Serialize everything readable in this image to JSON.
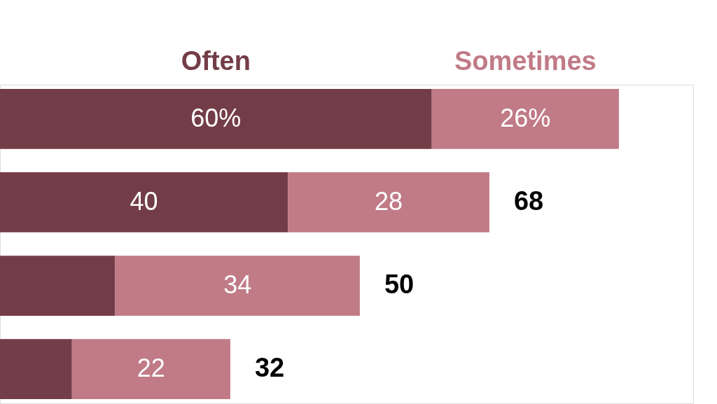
{
  "chart_data": {
    "type": "bar",
    "orientation": "horizontal",
    "stacked": true,
    "legend": "top",
    "categories": [
      null,
      null,
      null,
      null
    ],
    "series": [
      {
        "name": "Often",
        "color": "#733d47",
        "values": [
          60,
          40,
          16,
          10
        ],
        "value_labels": [
          "60%",
          "40",
          null,
          null
        ]
      },
      {
        "name": "Sometimes",
        "color": "#c07b87",
        "values": [
          26,
          28,
          34,
          22
        ],
        "value_labels": [
          "26%",
          "28",
          "34",
          "22"
        ]
      }
    ],
    "totals": [
      null,
      "68",
      "50",
      "32"
    ]
  }
}
